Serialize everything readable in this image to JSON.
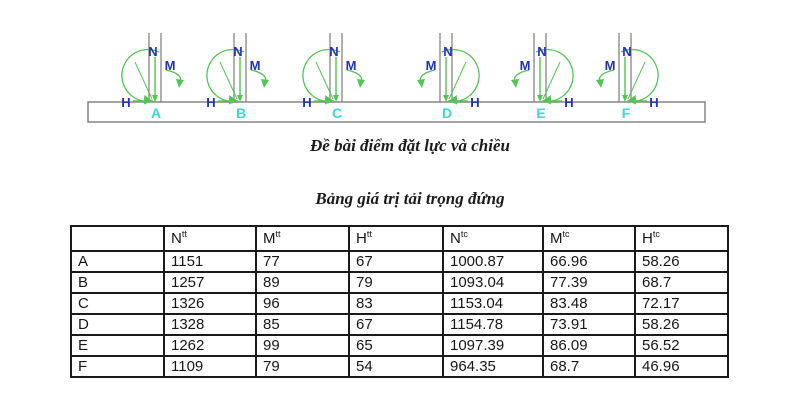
{
  "diagram": {
    "caption": "Đề bài điểm đặt lực và chiều",
    "force_labels": {
      "axial": "N",
      "moment": "M",
      "horizontal": "H"
    },
    "points": [
      {
        "name": "A",
        "side": "left"
      },
      {
        "name": "B",
        "side": "left"
      },
      {
        "name": "C",
        "side": "left"
      },
      {
        "name": "D",
        "side": "right"
      },
      {
        "name": "E",
        "side": "right"
      },
      {
        "name": "F",
        "side": "right"
      }
    ],
    "colors": {
      "force": "#52c552",
      "label": "#2030c0",
      "point": "#38d9d9",
      "structure": "#858585"
    }
  },
  "table": {
    "title": "Bảng giá trị tải trọng đứng",
    "headers": [
      {
        "base": "N",
        "sup": "tt"
      },
      {
        "base": "M",
        "sup": "tt"
      },
      {
        "base": "H",
        "sup": "tt"
      },
      {
        "base": "N",
        "sup": "tc"
      },
      {
        "base": "M",
        "sup": "tc"
      },
      {
        "base": "H",
        "sup": "tc"
      }
    ],
    "rows": [
      {
        "label": "A",
        "values": [
          "1151",
          "77",
          "67",
          "1000.87",
          "66.96",
          "58.26"
        ]
      },
      {
        "label": "B",
        "values": [
          "1257",
          "89",
          "79",
          "1093.04",
          "77.39",
          "68.7"
        ]
      },
      {
        "label": "C",
        "values": [
          "1326",
          "96",
          "83",
          "1153.04",
          "83.48",
          "72.17"
        ]
      },
      {
        "label": "D",
        "values": [
          "1328",
          "85",
          "67",
          "1154.78",
          "73.91",
          "58.26"
        ]
      },
      {
        "label": "E",
        "values": [
          "1262",
          "99",
          "65",
          "1097.39",
          "86.09",
          "56.52"
        ]
      },
      {
        "label": "F",
        "values": [
          "1109",
          "79",
          "54",
          "964.35",
          "68.7",
          "46.96"
        ]
      }
    ]
  }
}
